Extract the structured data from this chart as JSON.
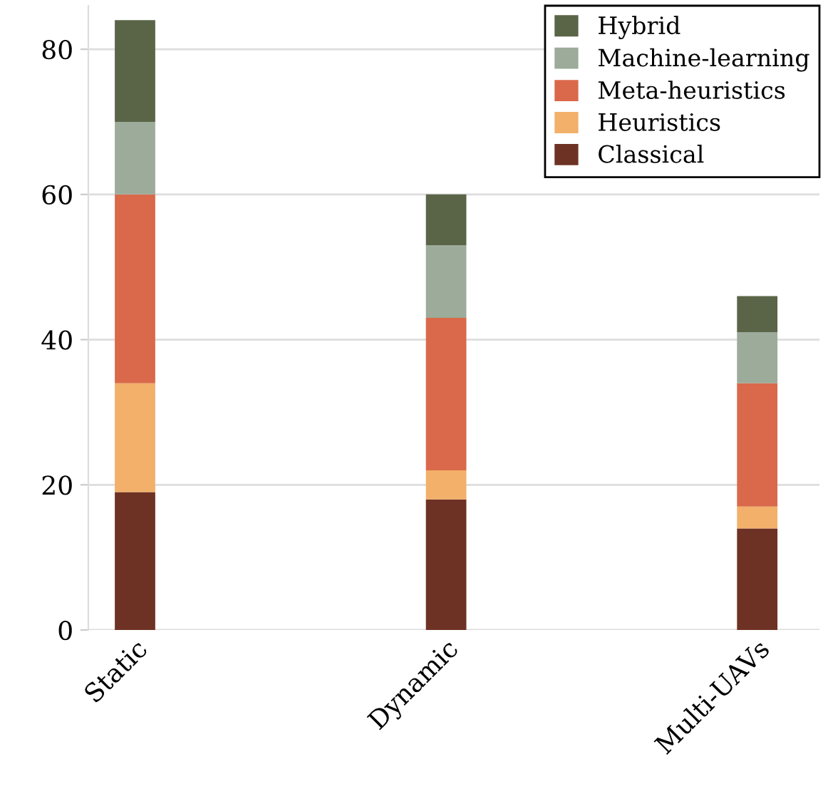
{
  "chart_data": {
    "type": "bar",
    "stacked": true,
    "categories": [
      "Static",
      "Dynamic",
      "Multi-UAVs"
    ],
    "series": [
      {
        "name": "Classical",
        "color": "#6e3224",
        "values": [
          19,
          18,
          14
        ]
      },
      {
        "name": "Heuristics",
        "color": "#f2b06a",
        "values": [
          15,
          4,
          3
        ]
      },
      {
        "name": "Meta-heuristics",
        "color": "#d9694a",
        "values": [
          26,
          21,
          17
        ]
      },
      {
        "name": "Machine-learning",
        "color": "#9dab9a",
        "values": [
          10,
          10,
          7
        ]
      },
      {
        "name": "Hybrid",
        "color": "#5a6447",
        "values": [
          14,
          7,
          5
        ]
      }
    ],
    "ylim": [
      0,
      86
    ],
    "yticks": [
      0,
      20,
      40,
      60,
      80
    ],
    "grid": "y",
    "legend": "top right"
  }
}
